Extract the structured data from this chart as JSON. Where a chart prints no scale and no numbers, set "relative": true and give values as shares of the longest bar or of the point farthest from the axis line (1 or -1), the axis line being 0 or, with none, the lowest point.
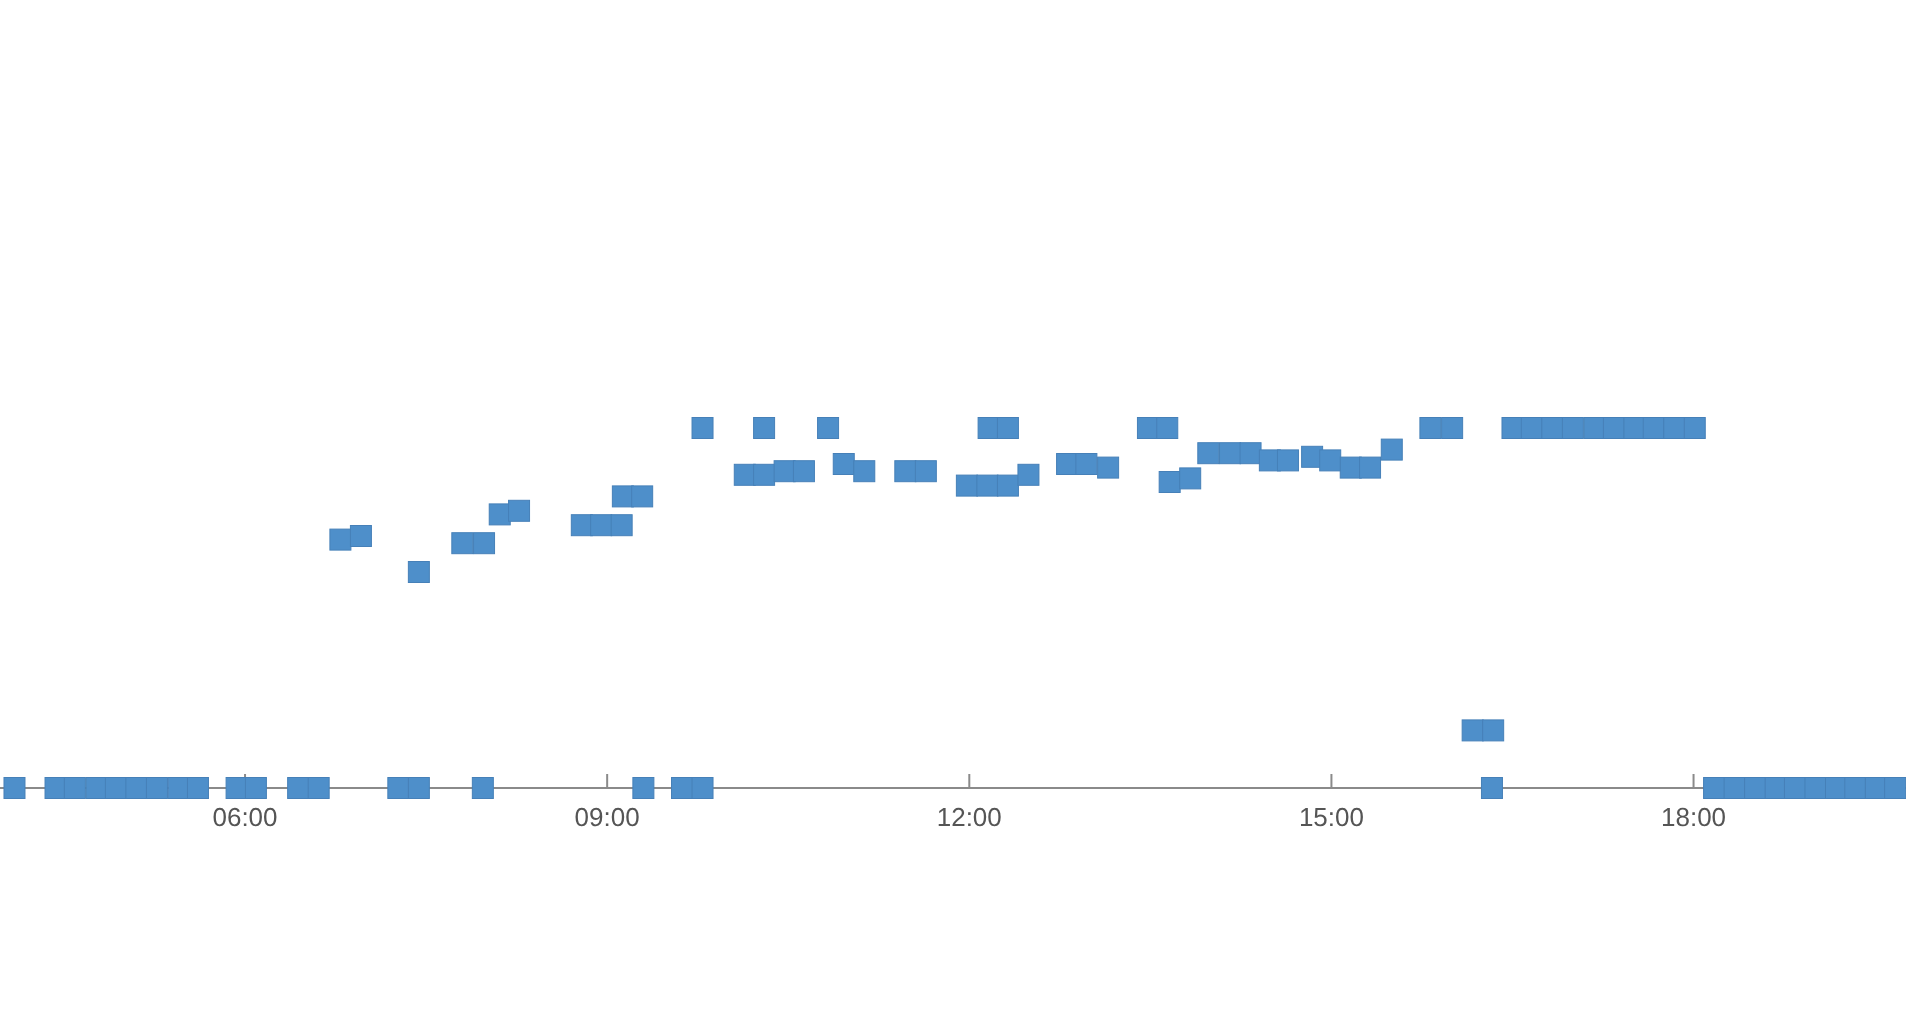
{
  "chart_data": {
    "type": "scatter",
    "marker": "square",
    "relative": true,
    "color": "#4e8fca",
    "xlim": [
      3.97,
      19.76
    ],
    "xticks": [
      {
        "value": 6,
        "label": "06:00"
      },
      {
        "value": 9,
        "label": "09:00"
      },
      {
        "value": 12,
        "label": "12:00"
      },
      {
        "value": 15,
        "label": "15:00"
      },
      {
        "value": 18,
        "label": "18:00"
      }
    ],
    "x": [
      4.09,
      4.43,
      4.59,
      4.77,
      4.93,
      5.1,
      5.27,
      5.45,
      5.61,
      5.93,
      6.09,
      6.44,
      6.61,
      6.79,
      6.96,
      7.27,
      7.44,
      7.44,
      7.8,
      7.97,
      7.98,
      8.11,
      8.27,
      8.79,
      8.95,
      9.12,
      9.13,
      9.29,
      9.3,
      9.62,
      9.79,
      9.79,
      10.14,
      10.3,
      10.3,
      10.47,
      10.63,
      10.83,
      10.96,
      11.13,
      11.47,
      11.64,
      11.98,
      12.15,
      12.16,
      12.32,
      12.32,
      12.49,
      12.81,
      12.97,
      13.15,
      13.48,
      13.64,
      13.66,
      13.83,
      13.98,
      14.16,
      14.33,
      14.49,
      14.64,
      14.84,
      14.99,
      15.16,
      15.32,
      15.5,
      15.82,
      16.0,
      16.17,
      16.33,
      16.34,
      16.5,
      16.66,
      16.83,
      17.0,
      17.18,
      17.34,
      17.51,
      17.67,
      17.84,
      18.01,
      18.17,
      18.34,
      18.51,
      18.68,
      18.84,
      19.01,
      19.18,
      19.34,
      19.51,
      19.67
    ],
    "values": [
      0,
      0,
      0,
      0,
      0,
      0,
      0,
      0,
      0,
      0,
      0,
      0,
      0,
      0.69,
      0.7,
      0,
      0,
      0.6,
      0.68,
      0,
      0.68,
      0.76,
      0.77,
      0.73,
      0.73,
      0.73,
      0.81,
      0.81,
      0,
      0,
      0,
      1,
      0.87,
      0.87,
      1,
      0.88,
      0.88,
      1,
      0.9,
      0.88,
      0.88,
      0.88,
      0.84,
      0.84,
      1,
      0.84,
      1,
      0.87,
      0.9,
      0.9,
      0.89,
      1,
      1,
      0.85,
      0.86,
      0.93,
      0.93,
      0.93,
      0.91,
      0.91,
      0.92,
      0.91,
      0.89,
      0.89,
      0.94,
      1,
      1,
      0.16,
      0,
      0.16,
      1,
      1,
      1,
      1,
      1,
      1,
      1,
      1,
      1,
      1,
      0,
      0,
      0,
      0,
      0,
      0,
      0,
      0,
      0,
      0
    ]
  }
}
